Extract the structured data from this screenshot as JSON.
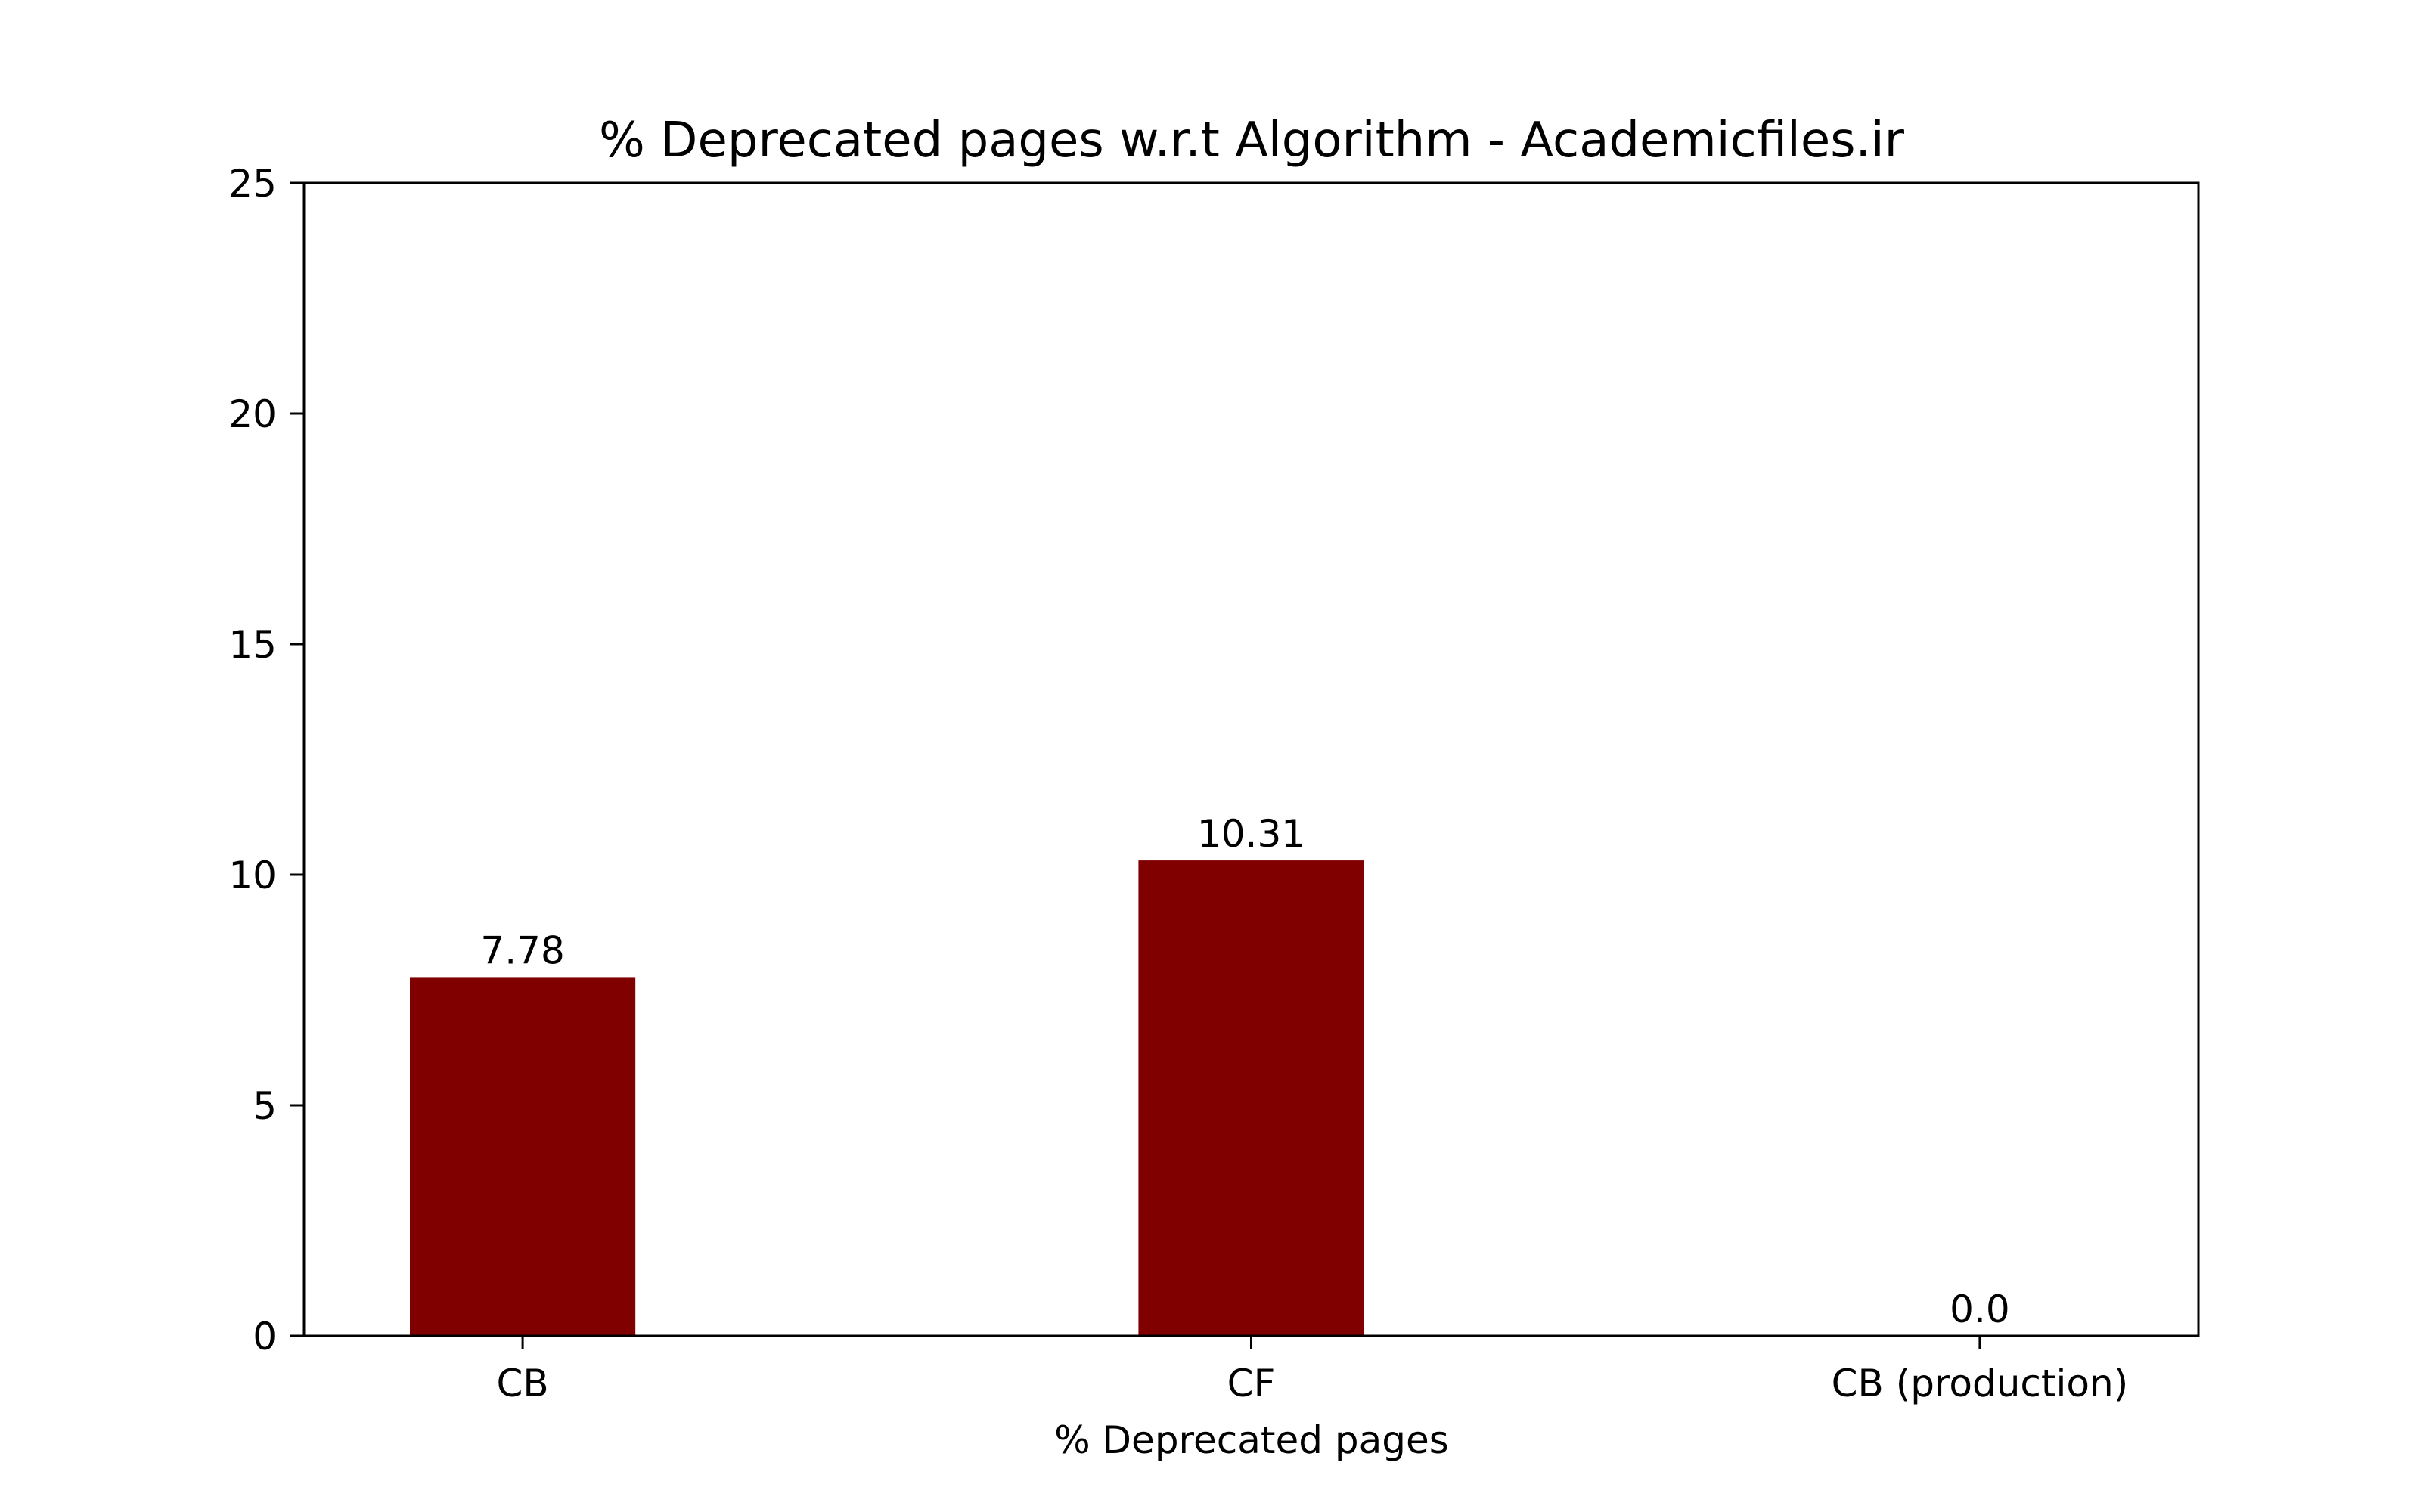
{
  "chart_data": {
    "type": "bar",
    "title": "% Deprecated pages w.r.t Algorithm - Academicfiles.ir",
    "xlabel": "% Deprecated pages",
    "ylabel": "",
    "categories": [
      "CB",
      "CF",
      "CB (production)"
    ],
    "values": [
      7.78,
      10.31,
      0.0
    ],
    "data_labels": [
      "7.78",
      "10.31",
      "0.0"
    ],
    "ylim": [
      0,
      25
    ],
    "yticks": [
      0,
      5,
      10,
      15,
      20,
      25
    ],
    "ytick_labels": [
      "0",
      "5",
      "10",
      "15",
      "20",
      "25"
    ],
    "grid": false,
    "legend": "none",
    "bar_color": "#800000"
  }
}
